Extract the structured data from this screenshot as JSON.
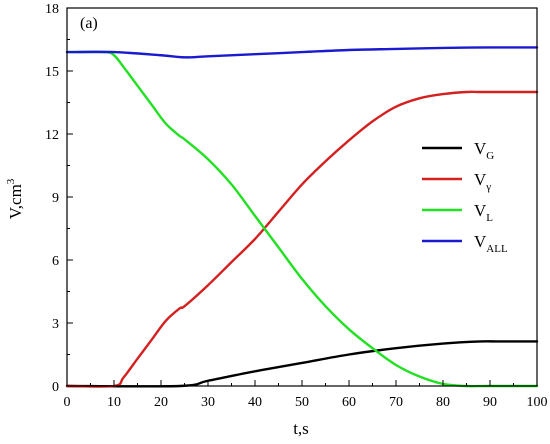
{
  "chart_data": {
    "type": "line",
    "panel_label": "(a)",
    "xlabel": "t,s",
    "ylabel_main": "V,cm",
    "ylabel_sup": "3",
    "xlim": [
      0,
      100
    ],
    "ylim": [
      0,
      18
    ],
    "xticks": [
      0,
      10,
      20,
      30,
      40,
      50,
      60,
      70,
      80,
      90,
      100
    ],
    "yticks": [
      0,
      3,
      6,
      9,
      12,
      15,
      18
    ],
    "grid": false,
    "legend_position": "center-right",
    "series": [
      {
        "name_main": "V",
        "name_sub": "G",
        "color": "#000000",
        "x": [
          0,
          24,
          30,
          40,
          50,
          60,
          70,
          80,
          88,
          92,
          100
        ],
        "y": [
          0,
          0,
          0.25,
          0.7,
          1.1,
          1.5,
          1.8,
          2.02,
          2.12,
          2.12,
          2.12
        ]
      },
      {
        "name_main": "V",
        "name_sub": "γ",
        "color": "#d42020",
        "x": [
          0,
          10,
          12,
          15,
          18,
          21,
          24,
          25,
          30,
          35,
          40,
          45,
          50,
          55,
          60,
          65,
          70,
          75,
          80,
          85,
          88,
          92,
          100
        ],
        "y": [
          0,
          0,
          0.4,
          1.3,
          2.2,
          3.1,
          3.7,
          3.8,
          4.8,
          5.9,
          7.0,
          8.3,
          9.6,
          10.7,
          11.7,
          12.6,
          13.3,
          13.7,
          13.9,
          14.0,
          14.0,
          14.0,
          14.0
        ]
      },
      {
        "name_main": "V",
        "name_sub": "L",
        "color": "#22e022",
        "x": [
          0,
          8,
          10,
          12,
          15,
          18,
          21,
          24,
          25,
          30,
          35,
          40,
          45,
          50,
          55,
          60,
          65,
          70,
          75,
          80,
          85,
          90,
          100
        ],
        "y": [
          15.9,
          15.9,
          15.75,
          15.2,
          14.3,
          13.4,
          12.5,
          11.9,
          11.75,
          10.8,
          9.6,
          8.1,
          6.6,
          5.1,
          3.8,
          2.7,
          1.8,
          1.0,
          0.45,
          0.1,
          0.0,
          0.0,
          0.0
        ]
      },
      {
        "name_main": "V",
        "name_sub": "ALL",
        "color": "#1a1ad0",
        "x": [
          0,
          10,
          20,
          25,
          30,
          40,
          50,
          60,
          70,
          80,
          90,
          100
        ],
        "y": [
          15.9,
          15.9,
          15.75,
          15.65,
          15.7,
          15.8,
          15.9,
          16.0,
          16.05,
          16.1,
          16.12,
          16.12
        ]
      }
    ]
  }
}
